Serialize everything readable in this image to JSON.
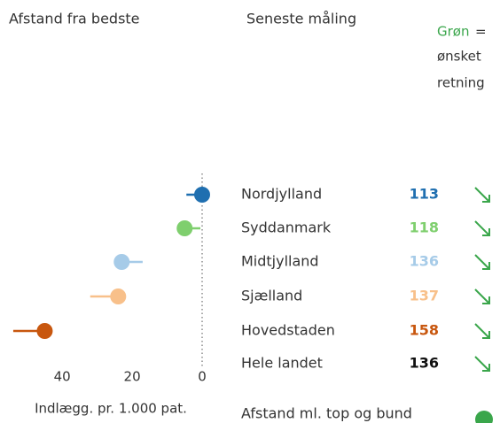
{
  "header": {
    "left_title": "Afstand fra bedste",
    "right_title": "Seneste måling",
    "note": {
      "highlight": "Grøn",
      "lines": [
        "=",
        "ønsket",
        "retning"
      ]
    }
  },
  "chart_data": {
    "type": "dot",
    "categories": [
      "Nordjylland",
      "Syddanmark",
      "Midtjylland",
      "Sjælland",
      "Hovedstaden",
      "Hele landet"
    ],
    "values": [
      0,
      5,
      23,
      24,
      45,
      null
    ],
    "previous": [
      4.5,
      0.5,
      17,
      32,
      54,
      null
    ],
    "latest": [
      113,
      118,
      136,
      137,
      158,
      136
    ],
    "colors": [
      "#1f6fb0",
      "#7fcf6e",
      "#a6cbe8",
      "#f8c08a",
      "#c8570f",
      "#111111"
    ],
    "xlim": [
      55,
      0
    ],
    "xticks": [
      40,
      20,
      0
    ],
    "x_label": "Indlægg. pr. 1.000 pat."
  },
  "footer": {
    "label": "Afstand ml. top og bund"
  }
}
